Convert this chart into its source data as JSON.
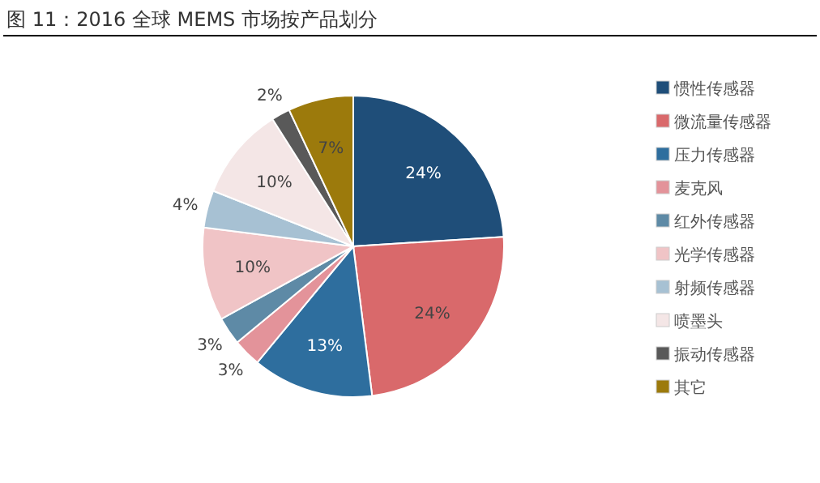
{
  "chart_data": {
    "type": "pie",
    "title": "图 11：2016 全球 MEMS 市场按产品划分",
    "categories": [
      "惯性传感器",
      "微流量传感器",
      "压力传感器",
      "麦克风",
      "红外传感器",
      "光学传感器",
      "射频传感器",
      "喷墨头",
      "振动传感器",
      "其它"
    ],
    "values": [
      24,
      24,
      13,
      3,
      3,
      10,
      4,
      10,
      2,
      7
    ],
    "colors": [
      "#1f4e79",
      "#d9696b",
      "#2e6e9e",
      "#e3939a",
      "#5e8aa6",
      "#f0c4c6",
      "#a7c1d3",
      "#f4e6e6",
      "#595959",
      "#9c7a0c"
    ],
    "value_labels": [
      "24%",
      "24%",
      "13%",
      "3%",
      "3%",
      "10%",
      "4%",
      "10%",
      "2%",
      "7%"
    ],
    "legend": "right"
  }
}
